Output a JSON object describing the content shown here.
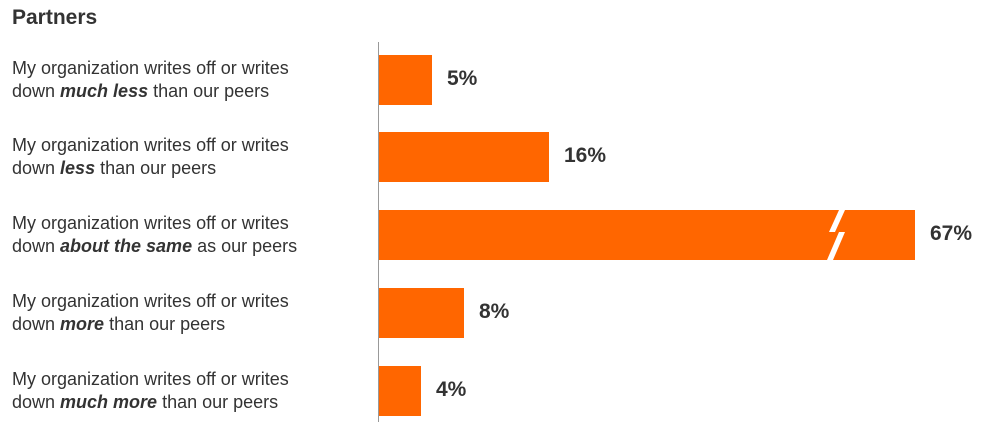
{
  "chart_data": {
    "type": "bar",
    "orientation": "horizontal",
    "title": "Partners",
    "categories": [
      {
        "prefix": "My organization writes off or writes",
        "before": "down ",
        "emph": "much less",
        "after": " than our peers"
      },
      {
        "prefix": "My organization writes off or writes",
        "before": "down ",
        "emph": "less",
        "after": " than our peers"
      },
      {
        "prefix": "My organization writes off or writes",
        "before": "down ",
        "emph": "about the same",
        "after": " as our peers"
      },
      {
        "prefix": "My organization writes off or writes",
        "before": "down ",
        "emph": "more",
        "after": " than our peers"
      },
      {
        "prefix": "My organization writes off or writes",
        "before": "down ",
        "emph": "much more",
        "after": " than our peers"
      }
    ],
    "values": [
      5,
      16,
      67,
      8,
      4
    ],
    "value_labels": [
      "5%",
      "16%",
      "67%",
      "8%",
      "4%"
    ],
    "axis_break_on": 2,
    "bar_color": "#ff6600",
    "grid": false,
    "legend": "none"
  }
}
